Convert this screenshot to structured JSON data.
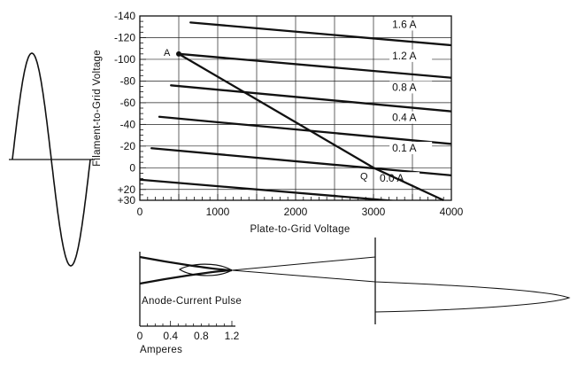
{
  "chart_data": [
    {
      "type": "line",
      "title": "",
      "xlabel": "Plate-to-Grid Voltage",
      "ylabel": "Filament-to-Grid Voltage",
      "xlim": [
        0,
        4000
      ],
      "ylim": [
        30,
        -140
      ],
      "x_ticks": [
        "0",
        "1000",
        "2000",
        "3000",
        "4000"
      ],
      "y_ticks": [
        "-140",
        "-120",
        "-100",
        "-80",
        "-60",
        "-40",
        "-20",
        "0",
        "+20",
        "+30"
      ],
      "grid": true,
      "series": [
        {
          "name": "1.6 A",
          "x": [
            650,
            4000
          ],
          "y": [
            -134,
            -113
          ]
        },
        {
          "name": "1.2 A",
          "x": [
            500,
            4000
          ],
          "y": [
            -105,
            -83
          ]
        },
        {
          "name": "0.8 A",
          "x": [
            400,
            4000
          ],
          "y": [
            -76,
            -52
          ]
        },
        {
          "name": "0.4 A",
          "x": [
            250,
            4000
          ],
          "y": [
            -47,
            -22
          ]
        },
        {
          "name": "0.1 A",
          "x": [
            150,
            4000
          ],
          "y": [
            -18,
            7
          ]
        },
        {
          "name": "0.0 A",
          "x": [
            0,
            4000
          ],
          "y": [
            11,
            35
          ]
        }
      ],
      "load_line": {
        "x": [
          500,
          3000,
          3900
        ],
        "y": [
          -105,
          0,
          35
        ]
      },
      "points": [
        {
          "label": "A",
          "x": 500,
          "y": -105
        },
        {
          "label": "Q",
          "x": 3000,
          "y": 0
        }
      ]
    },
    {
      "type": "line",
      "title": "Anode-Current Pulse",
      "xlabel": "Amperes",
      "xlim": [
        0,
        1.2
      ],
      "x_ticks": [
        "0",
        "0.4",
        "0.8",
        "1.2"
      ]
    }
  ]
}
